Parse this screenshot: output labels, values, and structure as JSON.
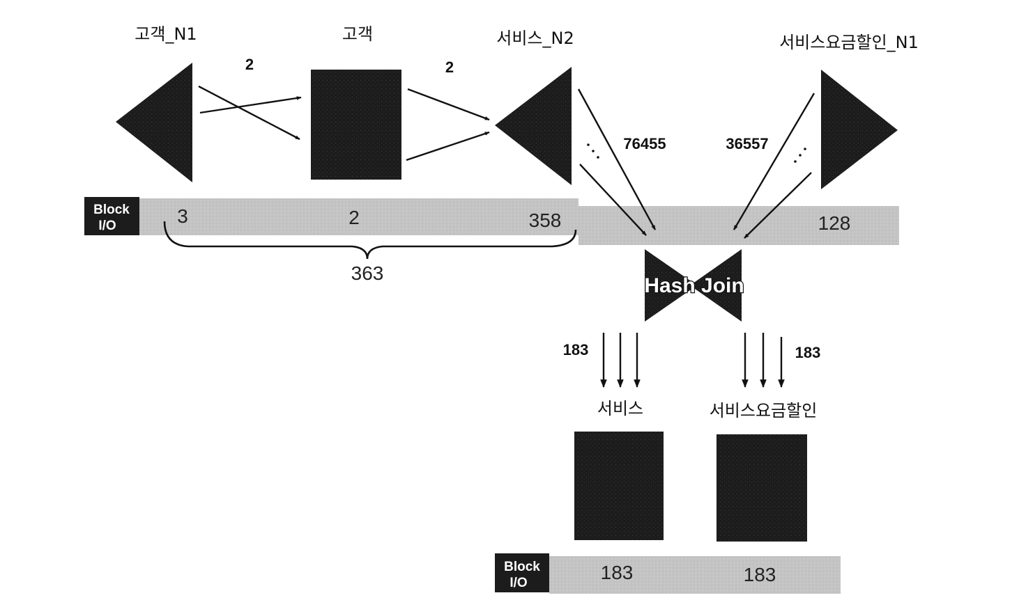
{
  "nodes": {
    "customer_n1": "고객_N1",
    "customer": "고객",
    "service_n2": "서비스_N2",
    "service_discount_n1": "서비스요금할인_N1",
    "service": "서비스",
    "service_discount": "서비스요금할인"
  },
  "flow_counts": {
    "n1_to_customer": "2",
    "customer_to_n2": "2",
    "n2_to_join": "76455",
    "discount_to_join": "36557",
    "join_to_service": "183",
    "join_to_discount": "183"
  },
  "io_bar_top": {
    "tag_line1": "Block",
    "tag_line2": "I/O",
    "v_customer_n1": "3",
    "v_customer": "2",
    "v_service_n2": "358",
    "v_service_discount_n1": "128",
    "subtotal": "363"
  },
  "join": {
    "label": "Hash Join"
  },
  "io_bar_bottom": {
    "tag_line1": "Block",
    "tag_line2": "I/O",
    "v_service": "183",
    "v_service_discount": "183"
  },
  "colors": {
    "shape_fill": "#1c1c1c",
    "bar_fill": "#c4c4c4",
    "tag_fill": "#1c1c1c"
  }
}
